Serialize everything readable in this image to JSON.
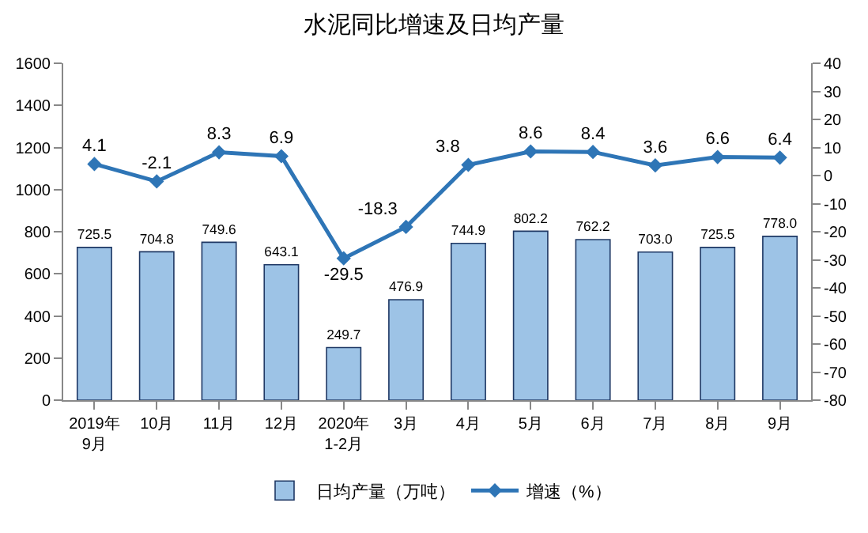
{
  "chart_data": {
    "type": "bar",
    "title": "水泥同比增速及日均产量",
    "categories": [
      "2019年\n9月",
      "10月",
      "11月",
      "12月",
      "2020年\n1-2月",
      "3月",
      "4月",
      "5月",
      "6月",
      "7月",
      "8月",
      "9月"
    ],
    "series": [
      {
        "name": "日均产量（万吨）",
        "color": "#9dc3e6",
        "values": [
          725.5,
          704.8,
          749.6,
          643.1,
          249.7,
          476.9,
          744.9,
          802.2,
          762.2,
          703.0,
          725.5,
          778.0
        ],
        "value_labels": [
          "725.5",
          "704.8",
          "749.6",
          "643.1",
          "249.7",
          "476.9",
          "744.9",
          "802.2",
          "762.2",
          "703.0",
          "725.5",
          "778.0"
        ]
      },
      {
        "name": "增速（%）",
        "type": "line",
        "axis": "y2",
        "color": "#2e75b6",
        "marker": "diamond",
        "values": [
          4.1,
          -2.1,
          8.3,
          6.9,
          -29.5,
          -18.3,
          3.8,
          8.6,
          8.4,
          3.6,
          6.6,
          6.4
        ],
        "value_labels": [
          "4.1",
          "-2.1",
          "8.3",
          "6.9",
          "-29.5",
          "-18.3",
          "3.8",
          "8.6",
          "8.4",
          "3.6",
          "6.6",
          "6.4"
        ]
      }
    ],
    "ylim": [
      0,
      1600
    ],
    "yticks": [
      0,
      200,
      400,
      600,
      800,
      1000,
      1200,
      1400,
      1600
    ],
    "y2lim": [
      -80,
      40
    ],
    "y2ticks": [
      -80,
      -70,
      -60,
      -50,
      -40,
      -30,
      -20,
      -10,
      0,
      10,
      20,
      30,
      40
    ],
    "legend": "bottom",
    "grid": false
  }
}
